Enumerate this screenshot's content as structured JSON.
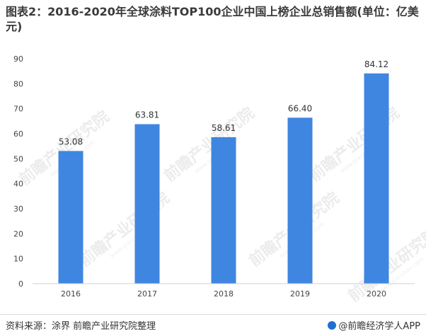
{
  "title": "图表2：2016-2020年全球涂料TOP100企业中国上榜企业总销售额(单位：亿美元)",
  "footer": {
    "source": "资料来源：涂界 前瞻产业研究院整理",
    "brand": "@前瞻经济学人APP"
  },
  "watermark": {
    "text": "前瞻产业研究院",
    "subtext": "www.qianzhan.com"
  },
  "chart_data": {
    "type": "bar",
    "categories": [
      "2016",
      "2017",
      "2018",
      "2019",
      "2020"
    ],
    "values": [
      53.08,
      63.81,
      58.61,
      66.4,
      84.12
    ],
    "value_labels": [
      "53.08",
      "63.81",
      "58.61",
      "66.40",
      "84.12"
    ],
    "ylim": [
      0,
      90
    ],
    "yticks": [
      "0",
      "10",
      "20",
      "30",
      "40",
      "50",
      "60",
      "70",
      "80",
      "90"
    ],
    "grid": false,
    "bar_color": "#3f86e0"
  }
}
